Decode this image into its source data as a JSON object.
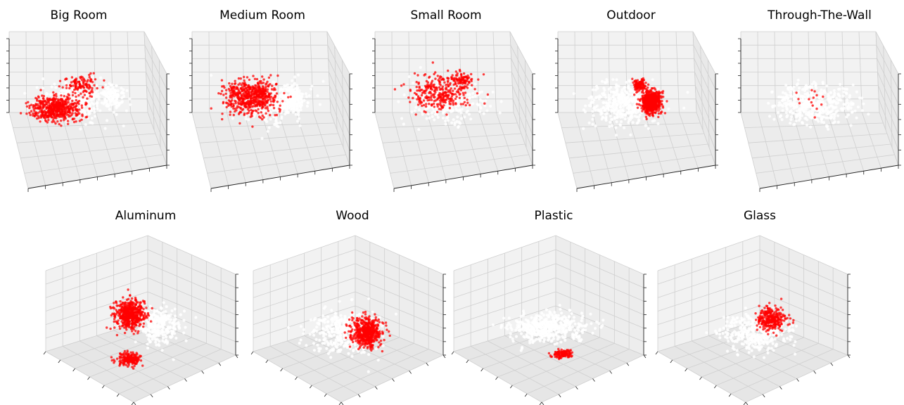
{
  "figure": {
    "background": "#ffffff",
    "highlight_color": "#ff0000",
    "background_point_color": "#ffffff",
    "pane_color": "#f2f2f2"
  },
  "chart_data": [
    {
      "type": "scatter",
      "title": "Big Room",
      "grid": true,
      "view": "top",
      "clusters": [
        {
          "role": "background",
          "cx": 0.45,
          "cy": 0.5,
          "sx": 0.26,
          "sy": 0.16,
          "n": 260
        },
        {
          "role": "background",
          "cx": 0.75,
          "cy": 0.45,
          "sx": 0.1,
          "sy": 0.1,
          "n": 120
        },
        {
          "role": "highlight",
          "cx": 0.3,
          "cy": 0.56,
          "sx": 0.18,
          "sy": 0.1,
          "n": 520
        },
        {
          "role": "highlight",
          "cx": 0.5,
          "cy": 0.35,
          "sx": 0.12,
          "sy": 0.08,
          "n": 120
        }
      ]
    },
    {
      "type": "scatter",
      "title": "Medium Room",
      "grid": true,
      "view": "top",
      "clusters": [
        {
          "role": "background",
          "cx": 0.55,
          "cy": 0.5,
          "sx": 0.26,
          "sy": 0.16,
          "n": 260
        },
        {
          "role": "background",
          "cx": 0.72,
          "cy": 0.47,
          "sx": 0.08,
          "sy": 0.1,
          "n": 160
        },
        {
          "role": "highlight",
          "cx": 0.4,
          "cy": 0.45,
          "sx": 0.2,
          "sy": 0.14,
          "n": 580
        }
      ]
    },
    {
      "type": "scatter",
      "title": "Small Room",
      "grid": true,
      "view": "top",
      "clusters": [
        {
          "role": "background",
          "cx": 0.5,
          "cy": 0.5,
          "sx": 0.25,
          "sy": 0.16,
          "n": 300
        },
        {
          "role": "highlight",
          "cx": 0.45,
          "cy": 0.42,
          "sx": 0.22,
          "sy": 0.15,
          "n": 300
        },
        {
          "role": "highlight",
          "cx": 0.62,
          "cy": 0.3,
          "sx": 0.08,
          "sy": 0.06,
          "n": 80
        }
      ]
    },
    {
      "type": "scatter",
      "title": "Outdoor",
      "grid": true,
      "view": "top",
      "clusters": [
        {
          "role": "background",
          "cx": 0.45,
          "cy": 0.52,
          "sx": 0.26,
          "sy": 0.17,
          "n": 420
        },
        {
          "role": "highlight",
          "cx": 0.67,
          "cy": 0.5,
          "sx": 0.07,
          "sy": 0.09,
          "n": 650
        },
        {
          "role": "highlight",
          "cx": 0.58,
          "cy": 0.35,
          "sx": 0.04,
          "sy": 0.04,
          "n": 120
        }
      ]
    },
    {
      "type": "scatter",
      "title": "Through-The-Wall",
      "grid": true,
      "view": "top",
      "clusters": [
        {
          "role": "background",
          "cx": 0.5,
          "cy": 0.52,
          "sx": 0.26,
          "sy": 0.16,
          "n": 460
        },
        {
          "role": "highlight",
          "cx": 0.5,
          "cy": 0.5,
          "sx": 0.12,
          "sy": 0.12,
          "n": 14
        }
      ]
    },
    {
      "type": "scatter",
      "title": "Aluminum",
      "grid": true,
      "view": "corner",
      "clusters": [
        {
          "role": "background",
          "cx": 0.6,
          "cy": 0.5,
          "sx": 0.14,
          "sy": 0.12,
          "n": 280
        },
        {
          "role": "highlight",
          "cx": 0.4,
          "cy": 0.42,
          "sx": 0.09,
          "sy": 0.1,
          "n": 520
        },
        {
          "role": "highlight",
          "cx": 0.4,
          "cy": 0.76,
          "sx": 0.07,
          "sy": 0.04,
          "n": 220
        }
      ]
    },
    {
      "type": "scatter",
      "title": "Wood",
      "grid": true,
      "view": "corner",
      "clusters": [
        {
          "role": "background",
          "cx": 0.45,
          "cy": 0.55,
          "sx": 0.2,
          "sy": 0.15,
          "n": 420
        },
        {
          "role": "highlight",
          "cx": 0.6,
          "cy": 0.55,
          "sx": 0.09,
          "sy": 0.1,
          "n": 520
        }
      ]
    },
    {
      "type": "scatter",
      "title": "Plastic",
      "grid": true,
      "view": "corner",
      "clusters": [
        {
          "role": "background",
          "cx": 0.48,
          "cy": 0.52,
          "sx": 0.22,
          "sy": 0.1,
          "n": 480
        },
        {
          "role": "highlight",
          "cx": 0.57,
          "cy": 0.72,
          "sx": 0.06,
          "sy": 0.03,
          "n": 130
        }
      ]
    },
    {
      "type": "scatter",
      "title": "Glass",
      "grid": true,
      "view": "corner",
      "clusters": [
        {
          "role": "background",
          "cx": 0.5,
          "cy": 0.55,
          "sx": 0.2,
          "sy": 0.13,
          "n": 380
        },
        {
          "role": "highlight",
          "cx": 0.6,
          "cy": 0.45,
          "sx": 0.09,
          "sy": 0.08,
          "n": 280
        }
      ]
    }
  ]
}
